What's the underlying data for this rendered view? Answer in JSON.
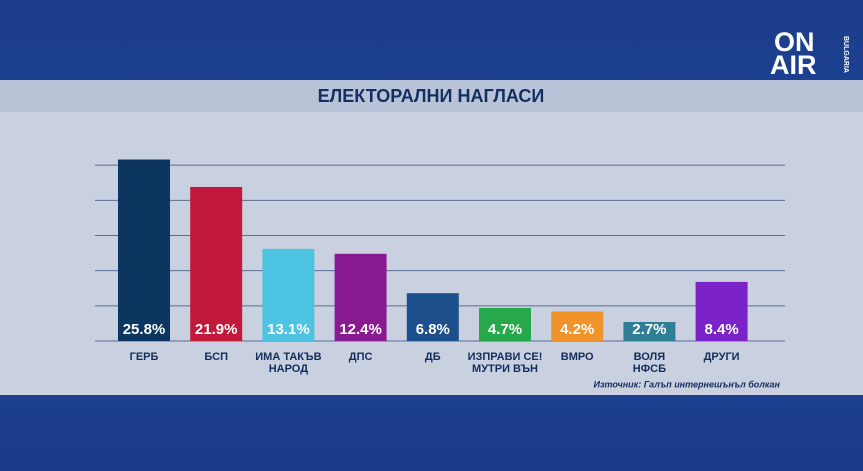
{
  "logo": {
    "line1": "ON",
    "line2": "AIR",
    "side": "BULGARIA"
  },
  "chart_data": {
    "type": "bar",
    "title": "ЕЛЕКТОРАЛНИ НАГЛАСИ",
    "categories": [
      "ГЕРБ",
      "БСП",
      "ИМА ТАКЪВ\nНАРОД",
      "ДПС",
      "ДБ",
      "ИЗПРАВИ СЕ!\nМУТРИ ВЪН",
      "ВМРО",
      "ВОЛЯ\nНФСБ",
      "ДРУГИ"
    ],
    "values": [
      25.8,
      21.9,
      13.1,
      12.4,
      6.8,
      4.7,
      4.2,
      2.7,
      8.4
    ],
    "value_labels": [
      "25.8%",
      "21.9%",
      "13.1%",
      "12.4%",
      "6.8%",
      "4.7%",
      "4.2%",
      "2.7%",
      "8.4%"
    ],
    "colors": [
      "#0c355f",
      "#c2183b",
      "#4cc4e2",
      "#8a1a8f",
      "#1d4f8c",
      "#27a84a",
      "#f0932b",
      "#2e7f96",
      "#7b22c9"
    ],
    "ylim": [
      0,
      30
    ],
    "yticks": [
      0,
      5,
      10,
      15,
      20,
      25
    ],
    "grid": true,
    "source": "Източник: Галъп интернешънъл болкан"
  }
}
